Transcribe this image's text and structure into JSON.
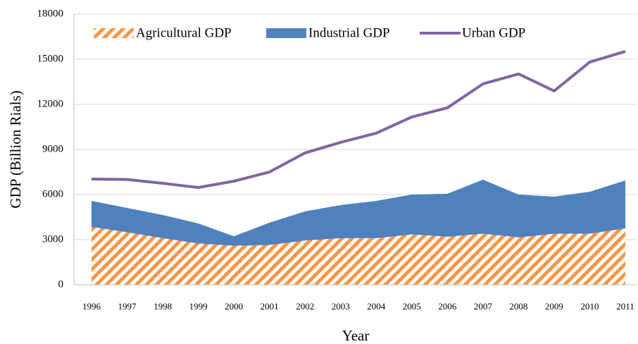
{
  "chart_data": {
    "type": "area",
    "categories": [
      "1996",
      "1997",
      "1998",
      "1999",
      "2000",
      "2001",
      "2002",
      "2003",
      "2004",
      "2005",
      "2006",
      "2007",
      "2008",
      "2009",
      "2010",
      "2011"
    ],
    "series": [
      {
        "name": "Industrial GDP",
        "color": "#4f81bd",
        "style": "area",
        "values": [
          5580,
          5110,
          4640,
          4080,
          3230,
          4130,
          4880,
          5300,
          5580,
          6000,
          6050,
          6990,
          6000,
          5860,
          6190,
          6940
        ]
      },
      {
        "name": "Agricultural GDP",
        "color": "#f79646",
        "style": "hatched-area",
        "values": [
          3850,
          3500,
          3100,
          2750,
          2600,
          2650,
          2950,
          3100,
          3100,
          3350,
          3200,
          3400,
          3150,
          3400,
          3400,
          3750
        ]
      },
      {
        "name": "Urban GDP",
        "color": "#8064a2",
        "style": "line",
        "values": [
          7030,
          7000,
          6750,
          6470,
          6890,
          7500,
          8770,
          9470,
          10080,
          11160,
          11770,
          13360,
          14020,
          12890,
          14810,
          15520
        ]
      }
    ],
    "x_label": "Year",
    "y_label": "GDP (Billion Rials)",
    "ylim": [
      0,
      18000
    ],
    "yticks": [
      0,
      3000,
      6000,
      9000,
      12000,
      15000,
      18000
    ],
    "grid": true
  }
}
